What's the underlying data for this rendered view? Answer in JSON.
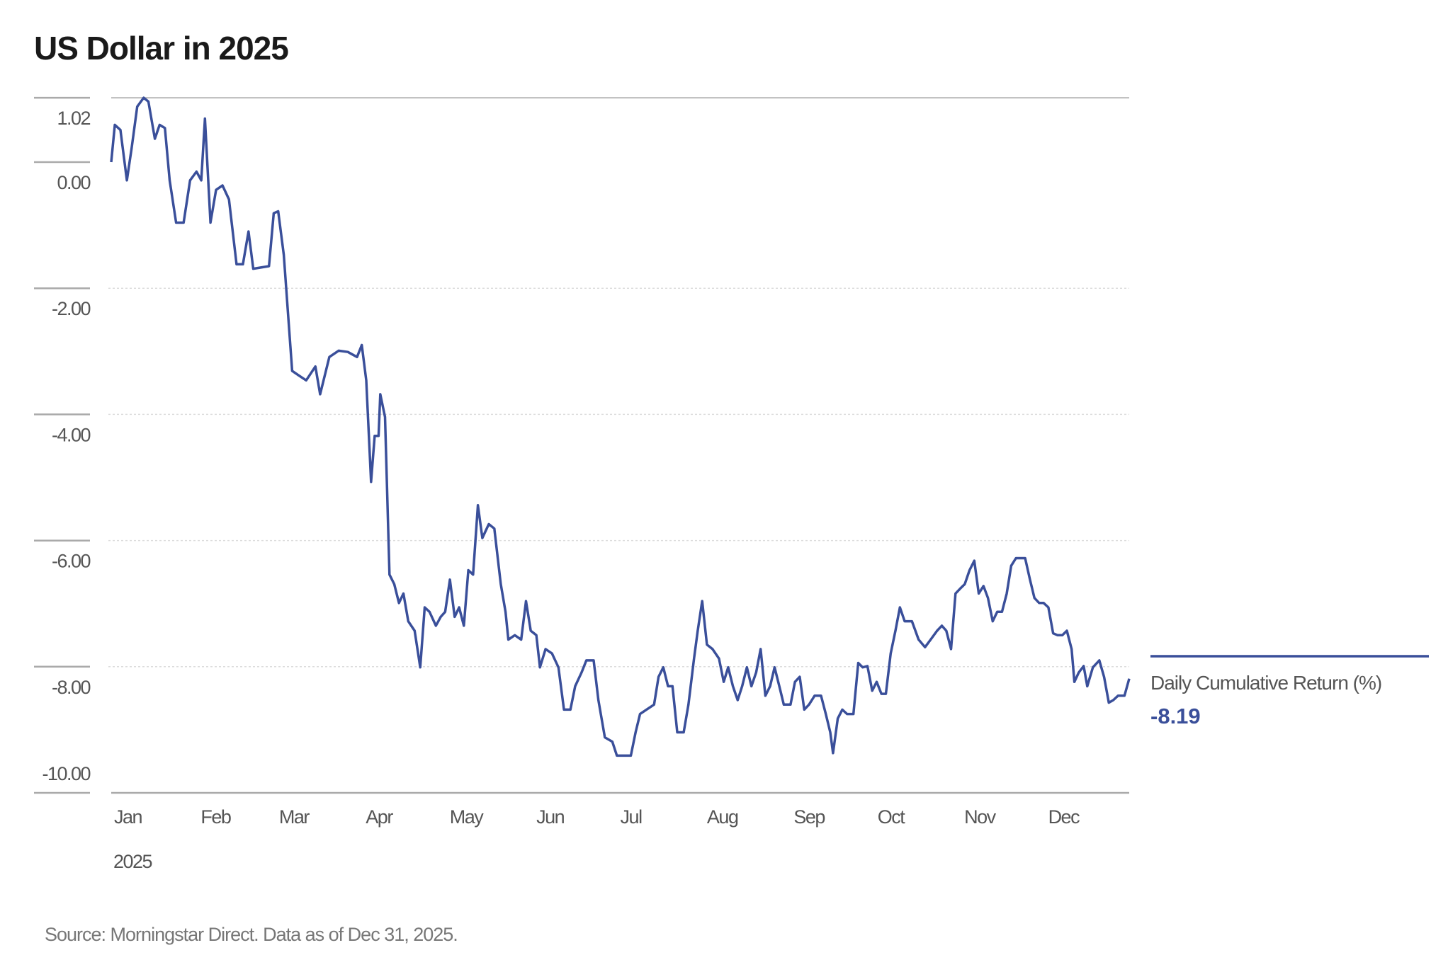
{
  "chart_data": {
    "type": "line",
    "title": "US Dollar in 2025",
    "xlabel": "2025",
    "ylabel": "",
    "x_unit": "day of year (0 = Jan 1)",
    "xlim": [
      0,
      364
    ],
    "ylim": [
      -10.0,
      1.02
    ],
    "yticks": [
      1.02,
      0.0,
      -2.0,
      -4.0,
      -6.0,
      -8.0,
      -10.0
    ],
    "ytick_labels": [
      "1.02",
      "0.00",
      "-2.00",
      "-4.00",
      "-6.00",
      "-8.00",
      "-10.00"
    ],
    "month_labels": [
      "Jan",
      "Feb",
      "Mar",
      "Apr",
      "May",
      "Jun",
      "Jul",
      "Aug",
      "Sep",
      "Oct",
      "Nov",
      "Dec"
    ],
    "month_start_days": [
      0,
      31,
      59,
      90,
      120,
      151,
      181,
      212,
      243,
      273,
      304,
      334
    ],
    "year_label": "2025",
    "grid": true,
    "legend_position": "right",
    "series": [
      {
        "name": "Daily Cumulative Return (%)",
        "color": "#3a4f9a",
        "last_value": "-8.19",
        "x": [
          0,
          1.3,
          3.3,
          5.6,
          7.3,
          9.3,
          11.6,
          13.3,
          15.6,
          17.3,
          19.2,
          20.9,
          23.2,
          25.9,
          28.2,
          30.5,
          32.2,
          33.5,
          35.5,
          37.5,
          39.8,
          42.1,
          44.8,
          47.1,
          49.1,
          50.8,
          56.4,
          58.1,
          59.7,
          61.7,
          64.7,
          67.0,
          69.7,
          73.0,
          74.7,
          78.0,
          81.3,
          84.6,
          87.9,
          89.6,
          91.2,
          92.9,
          94.2,
          95.6,
          96.2,
          97.9,
          99.5,
          101.2,
          102.9,
          104.5,
          106.2,
          108.5,
          110.5,
          112.1,
          113.8,
          116.1,
          117.8,
          119.4,
          121.1,
          122.8,
          124.4,
          126.1,
          127.7,
          129.4,
          131.1,
          132.7,
          135.0,
          137.0,
          139.3,
          141.0,
          142.0,
          144.3,
          146.6,
          148.3,
          150.0,
          152.0,
          153.3,
          155.3,
          157.6,
          159.9,
          161.9,
          164.2,
          165.9,
          168.2,
          169.9,
          172.5,
          174.2,
          176.5,
          179.2,
          180.8,
          183.1,
          185.8,
          187.5,
          189.1,
          191.4,
          194.1,
          195.7,
          197.4,
          199.1,
          200.7,
          202.4,
          204.7,
          206.4,
          208.4,
          209.7,
          211.3,
          213.0,
          215.0,
          217.3,
          219.0,
          220.6,
          222.3,
          224.0,
          225.6,
          227.3,
          228.9,
          230.6,
          232.2,
          233.9,
          235.6,
          237.2,
          238.9,
          240.5,
          242.9,
          244.5,
          246.2,
          247.8,
          249.5,
          251.5,
          253.8,
          255.5,
          257.1,
          258.1,
          259.8,
          261.4,
          263.1,
          265.4,
          267.1,
          268.7,
          270.4,
          272.1,
          273.7,
          275.4,
          277.0,
          278.7,
          280.4,
          282.0,
          283.7,
          286.3,
          288.7,
          291.0,
          293.0,
          295.3,
          297.0,
          298.6,
          300.3,
          301.9,
          303.6,
          305.2,
          306.9,
          308.6,
          310.2,
          311.9,
          313.5,
          315.2,
          316.8,
          318.5,
          320.2,
          321.8,
          323.5,
          326.8,
          328.5,
          330.1,
          331.8,
          333.4,
          335.1,
          336.8,
          338.4,
          340.1,
          341.7,
          343.4,
          344.4,
          346.0,
          347.7,
          349.0,
          351.0,
          353.3,
          355.0,
          356.7,
          358.3,
          360.0,
          362.3,
          364
        ],
        "y": [
          0.0,
          0.59,
          0.51,
          -0.29,
          0.22,
          0.88,
          1.02,
          0.96,
          0.37,
          0.59,
          0.54,
          -0.29,
          -0.96,
          -0.96,
          -0.29,
          -0.15,
          -0.29,
          0.69,
          -0.96,
          -0.44,
          -0.37,
          -0.59,
          -1.62,
          -1.62,
          -1.1,
          -1.69,
          -1.65,
          -0.81,
          -0.78,
          -1.47,
          -3.31,
          -3.38,
          -3.46,
          -3.24,
          -3.68,
          -3.09,
          -2.99,
          -3.01,
          -3.09,
          -2.9,
          -3.46,
          -5.07,
          -4.34,
          -4.34,
          -3.68,
          -4.04,
          -6.54,
          -6.69,
          -6.99,
          -6.84,
          -7.28,
          -7.43,
          -8.01,
          -7.06,
          -7.13,
          -7.35,
          -7.21,
          -7.13,
          -6.62,
          -7.21,
          -7.06,
          -7.35,
          -6.47,
          -6.54,
          -5.44,
          -5.96,
          -5.74,
          -5.81,
          -6.69,
          -7.13,
          -7.57,
          -7.5,
          -7.57,
          -6.96,
          -7.43,
          -7.5,
          -8.01,
          -7.72,
          -7.79,
          -8.01,
          -8.68,
          -8.68,
          -8.31,
          -8.09,
          -7.9,
          -7.9,
          -8.53,
          -9.12,
          -9.19,
          -9.41,
          -9.41,
          -9.41,
          -9.04,
          -8.75,
          -8.68,
          -8.6,
          -8.16,
          -8.01,
          -8.31,
          -8.31,
          -9.04,
          -9.04,
          -8.6,
          -7.87,
          -7.43,
          -6.96,
          -7.65,
          -7.72,
          -7.87,
          -8.24,
          -8.01,
          -8.31,
          -8.53,
          -8.31,
          -8.01,
          -8.31,
          -8.09,
          -7.72,
          -8.46,
          -8.31,
          -8.01,
          -8.31,
          -8.6,
          -8.6,
          -8.24,
          -8.16,
          -8.68,
          -8.6,
          -8.46,
          -8.46,
          -8.75,
          -9.04,
          -9.37,
          -8.82,
          -8.68,
          -8.75,
          -8.75,
          -7.94,
          -8.01,
          -7.99,
          -8.38,
          -8.24,
          -8.43,
          -8.43,
          -7.79,
          -7.43,
          -7.06,
          -7.28,
          -7.28,
          -7.57,
          -7.69,
          -7.57,
          -7.43,
          -7.35,
          -7.43,
          -7.72,
          -6.84,
          -6.76,
          -6.69,
          -6.47,
          -6.32,
          -6.84,
          -6.72,
          -6.91,
          -7.28,
          -7.13,
          -7.13,
          -6.84,
          -6.4,
          -6.28,
          -6.28,
          -6.62,
          -6.91,
          -6.99,
          -6.99,
          -7.06,
          -7.47,
          -7.5,
          -7.5,
          -7.43,
          -7.72,
          -8.24,
          -8.09,
          -7.99,
          -8.31,
          -8.01,
          -7.9,
          -8.16,
          -8.57,
          -8.53,
          -8.46,
          -8.46,
          -8.19
        ]
      }
    ],
    "source": "Source: Morningstar Direct. Data as of Dec 31, 2025."
  }
}
